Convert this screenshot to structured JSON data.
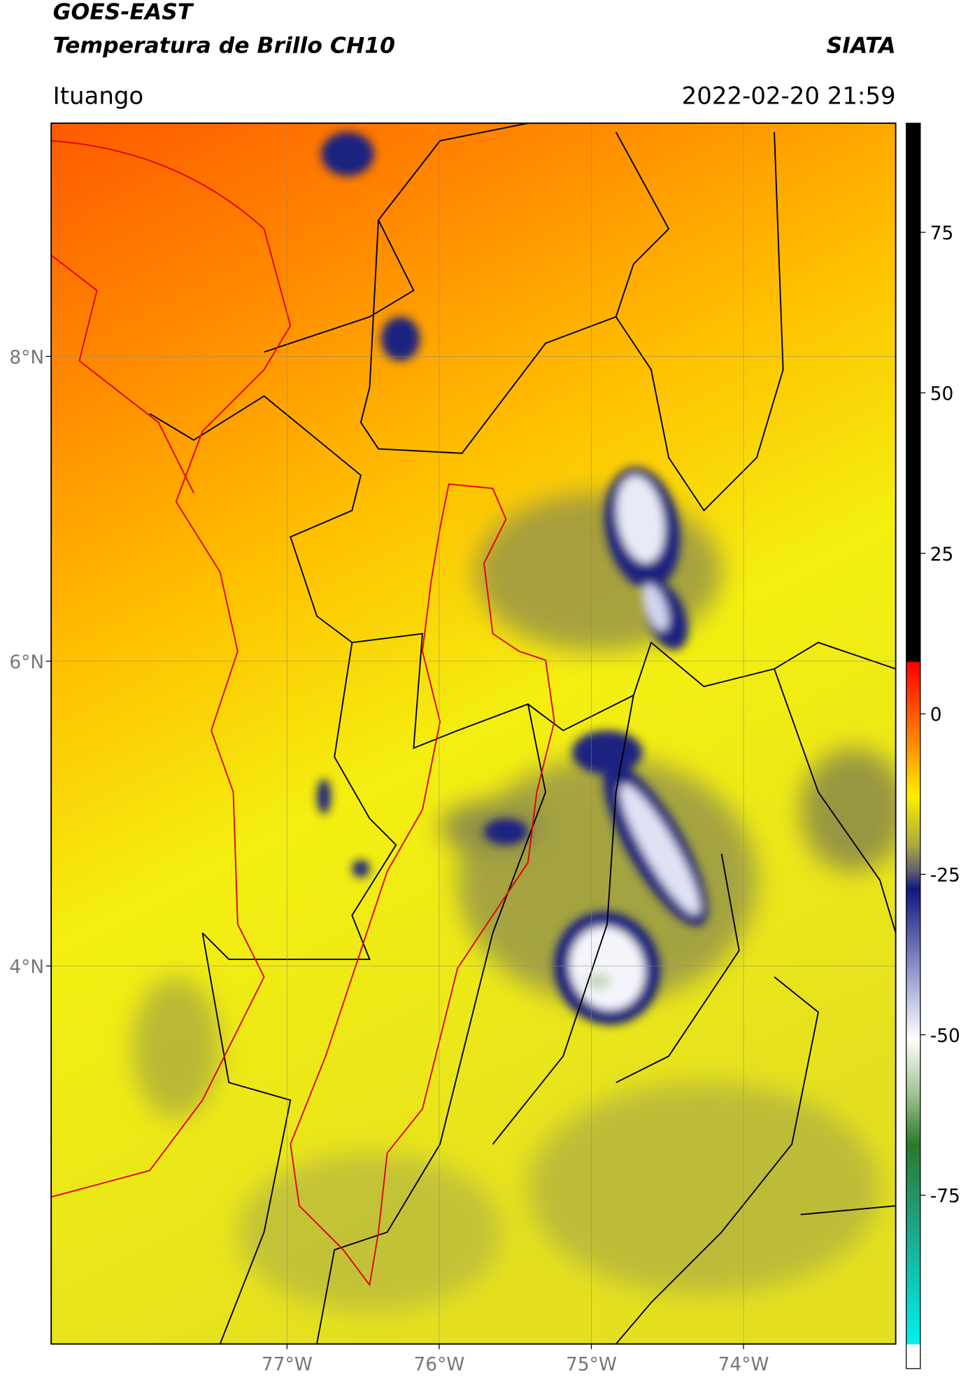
{
  "header": {
    "title_line1": "GOES-EAST",
    "title_line2": "Temperatura de Brillo CH10",
    "source": "SIATA",
    "location": "Ituango",
    "datetime": "2022-02-20 21:59"
  },
  "map": {
    "lat_range": [
      1.52,
      9.53
    ],
    "lon_range": [
      -78.55,
      -73.0
    ],
    "lat_ticks": [
      {
        "value": 8,
        "label": "8°N"
      },
      {
        "value": 6,
        "label": "6°N"
      },
      {
        "value": 4,
        "label": "4°N"
      }
    ],
    "lon_ticks": [
      {
        "value": -77,
        "label": "77°W"
      },
      {
        "value": -76,
        "label": "76°W"
      },
      {
        "value": -75,
        "label": "75°W"
      },
      {
        "value": -74,
        "label": "74°W"
      }
    ]
  },
  "colorbar": {
    "range": [
      -102,
      92
    ],
    "ticks": [
      75,
      50,
      25,
      0,
      -25,
      -50,
      -75
    ]
  }
}
